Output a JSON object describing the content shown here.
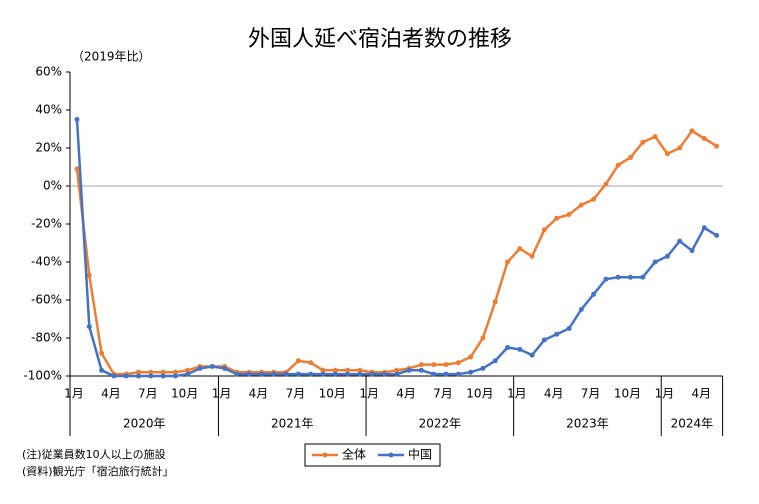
{
  "chart_data": {
    "type": "line",
    "title": "外国人延べ宿泊者数の推移",
    "y_unit_label": "（2019年比）",
    "categories": [
      "1月",
      null,
      null,
      "4月",
      null,
      null,
      "7月",
      null,
      null,
      "10月",
      null,
      null,
      "1月",
      null,
      null,
      "4月",
      null,
      null,
      "7月",
      null,
      null,
      "10月",
      null,
      null,
      "1月",
      null,
      null,
      "4月",
      null,
      null,
      "7月",
      null,
      null,
      "10月",
      null,
      null,
      "1月",
      null,
      null,
      "4月",
      null,
      null,
      "7月",
      null,
      null,
      "10月",
      null,
      null,
      "1月",
      null,
      null,
      "4月",
      null
    ],
    "groups": [
      "2020年",
      "2021年",
      "2022年",
      "2023年",
      "2024年"
    ],
    "series": [
      {
        "name": "全体",
        "color": "#ed7d31",
        "values": [
          9,
          -47,
          -88,
          -99,
          -99,
          -98,
          -98,
          -98,
          -98,
          -97,
          -95,
          -95,
          -95,
          -98,
          -98,
          -98,
          -98,
          -98,
          -92,
          -93,
          -97,
          -97,
          -97,
          -97,
          -98,
          -98,
          -97,
          -96,
          -94,
          -94,
          -94,
          -93,
          -90,
          -80,
          -61,
          -40,
          -33,
          -37,
          -23,
          -17,
          -15,
          -10,
          -7,
          1,
          11,
          15,
          23,
          26,
          17,
          20,
          29,
          25,
          21
        ]
      },
      {
        "name": "中国",
        "color": "#4472c4",
        "values": [
          35,
          -74,
          -97,
          -100,
          -100,
          -100,
          -100,
          -100,
          -100,
          -99,
          -96,
          -95,
          -96,
          -99,
          -99,
          -99,
          -99,
          -99,
          -99,
          -99,
          -99,
          -99,
          -99,
          -99,
          -99,
          -99,
          -99,
          -97,
          -97,
          -99,
          -99,
          -99,
          -98,
          -96,
          -92,
          -85,
          -86,
          -89,
          -81,
          -78,
          -75,
          -65,
          -57,
          -49,
          -48,
          -48,
          -48,
          -40,
          -37,
          -29,
          -34,
          -22,
          -26
        ]
      }
    ],
    "ylim": [
      -100,
      60
    ],
    "yticks": [
      {
        "value": -100,
        "label": "-100%"
      },
      {
        "value": -80,
        "label": "-80%"
      },
      {
        "value": -60,
        "label": "-60%"
      },
      {
        "value": -40,
        "label": "-40%"
      },
      {
        "value": -20,
        "label": "-20%"
      },
      {
        "value": 0,
        "label": "0%"
      },
      {
        "value": 20,
        "label": "20%"
      },
      {
        "value": 40,
        "label": "40%"
      },
      {
        "value": 60,
        "label": "60%"
      }
    ],
    "zero_line": true,
    "notes": [
      "(注)従業員数10人以上の施設",
      "(資料)観光庁「宿泊旅行統計」"
    ]
  }
}
